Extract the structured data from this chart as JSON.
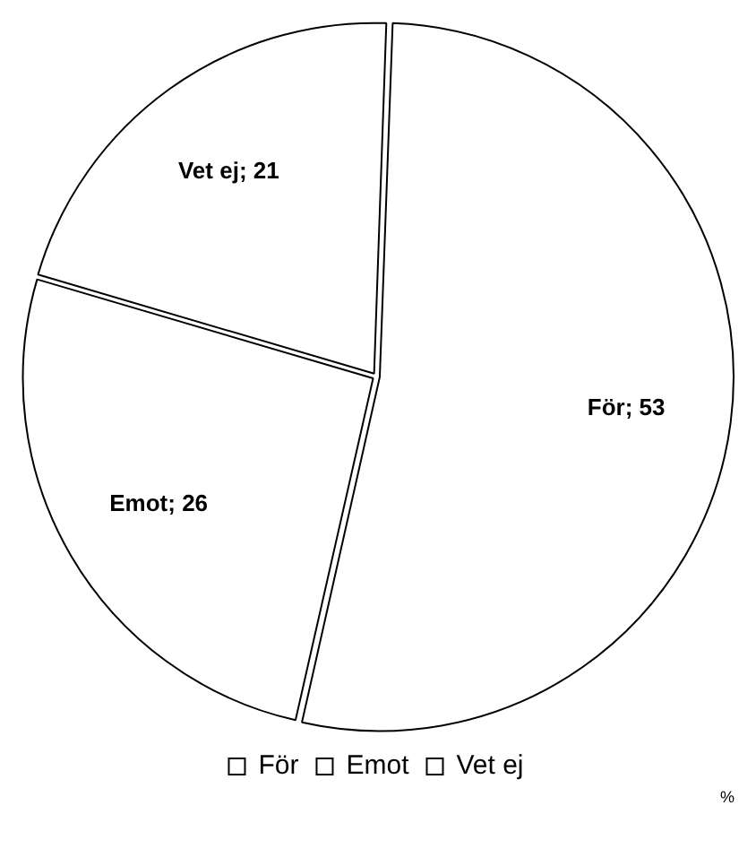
{
  "chart_data": {
    "type": "pie",
    "categories": [
      "För",
      "Emot",
      "Vet ej"
    ],
    "values": [
      53,
      26,
      21
    ],
    "value_labels": [
      "För; 53",
      "Emot; 26",
      "Vet ej; 21"
    ],
    "colors": [
      "#ffffff",
      "#ffffff",
      "#ffffff"
    ],
    "legend": "bottom",
    "annotations": [
      "%"
    ]
  }
}
